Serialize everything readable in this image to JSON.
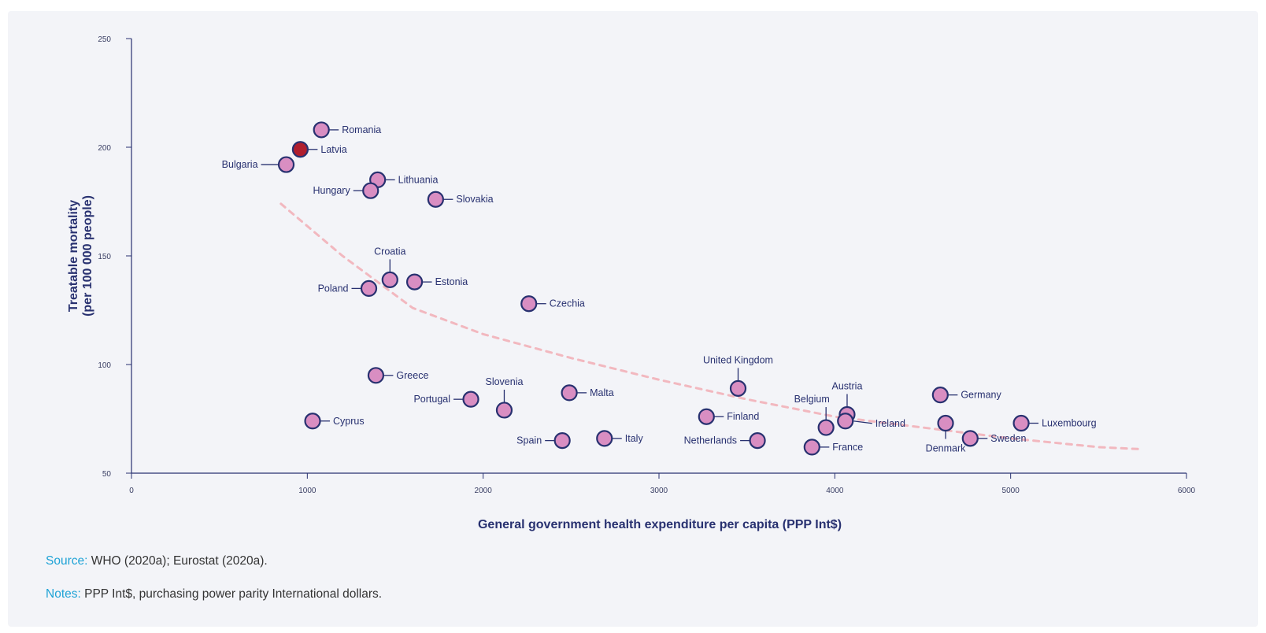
{
  "chart_data": {
    "type": "scatter",
    "xlabel": "General government health expenditure  per capita (PPP Int$)",
    "ylabel_lines": [
      "Treatable mortality",
      "(per 100 000 people)"
    ],
    "xlim": [
      0,
      6000
    ],
    "ylim": [
      50,
      250
    ],
    "xticks": [
      0,
      1000,
      2000,
      3000,
      4000,
      5000,
      6000
    ],
    "yticks": [
      50,
      100,
      150,
      200,
      250
    ],
    "grid": false,
    "colors": {
      "point": "#d98ec2",
      "highlight": "#b01e2e",
      "stroke": "#283170",
      "trend": "#f2b8bf"
    },
    "trend": {
      "type": "power-decay",
      "x_range": [
        850,
        5750
      ],
      "points": [
        [
          850,
          174
        ],
        [
          1200,
          150
        ],
        [
          1600,
          126
        ],
        [
          2000,
          114
        ],
        [
          2500,
          103
        ],
        [
          3000,
          93
        ],
        [
          3500,
          84
        ],
        [
          4000,
          76
        ],
        [
          4500,
          71
        ],
        [
          5000,
          66
        ],
        [
          5500,
          62
        ],
        [
          5750,
          61
        ]
      ]
    },
    "points": [
      {
        "name": "Romania",
        "x": 1080,
        "y": 208
      },
      {
        "name": "Latvia",
        "x": 960,
        "y": 199,
        "highlight": true
      },
      {
        "name": "Bulgaria",
        "x": 880,
        "y": 192
      },
      {
        "name": "Lithuania",
        "x": 1400,
        "y": 185
      },
      {
        "name": "Hungary",
        "x": 1360,
        "y": 180
      },
      {
        "name": "Slovakia",
        "x": 1730,
        "y": 176
      },
      {
        "name": "Croatia",
        "x": 1470,
        "y": 139
      },
      {
        "name": "Estonia",
        "x": 1610,
        "y": 138
      },
      {
        "name": "Poland",
        "x": 1350,
        "y": 135
      },
      {
        "name": "Czechia",
        "x": 2260,
        "y": 128
      },
      {
        "name": "Greece",
        "x": 1390,
        "y": 95
      },
      {
        "name": "United Kingdom",
        "x": 3450,
        "y": 89
      },
      {
        "name": "Malta",
        "x": 2490,
        "y": 87
      },
      {
        "name": "Germany",
        "x": 4600,
        "y": 86
      },
      {
        "name": "Portugal",
        "x": 1930,
        "y": 84
      },
      {
        "name": "Slovenia",
        "x": 2120,
        "y": 79
      },
      {
        "name": "Austria",
        "x": 4070,
        "y": 77
      },
      {
        "name": "Finland",
        "x": 3270,
        "y": 76
      },
      {
        "name": "Cyprus",
        "x": 1030,
        "y": 74
      },
      {
        "name": "Ireland",
        "x": 4060,
        "y": 74
      },
      {
        "name": "Luxembourg",
        "x": 5060,
        "y": 73
      },
      {
        "name": "Denmark",
        "x": 4630,
        "y": 73
      },
      {
        "name": "Belgium",
        "x": 3950,
        "y": 71
      },
      {
        "name": "Italy",
        "x": 2690,
        "y": 66
      },
      {
        "name": "Sweden",
        "x": 4770,
        "y": 66
      },
      {
        "name": "Spain",
        "x": 2450,
        "y": 65
      },
      {
        "name": "Netherlands",
        "x": 3560,
        "y": 65
      },
      {
        "name": "France",
        "x": 3870,
        "y": 62
      }
    ]
  },
  "notes": {
    "source_key": "Source:",
    "source_text": "WHO (2020a); Eurostat (2020a).",
    "notes_key": "Notes:",
    "notes_text": "PPP Int$, purchasing power parity International dollars."
  }
}
